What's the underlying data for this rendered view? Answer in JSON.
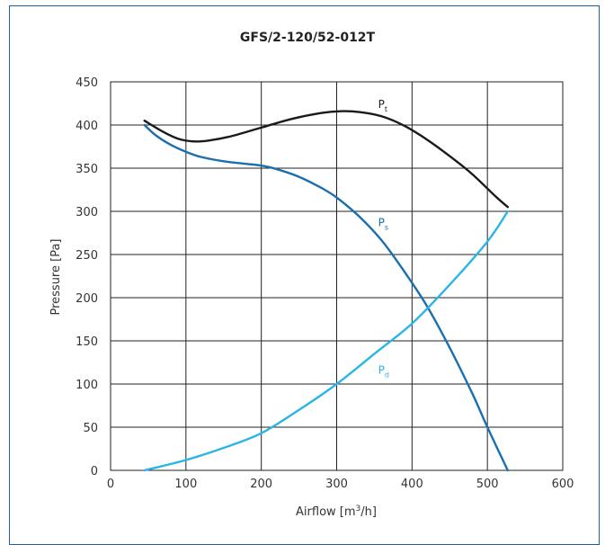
{
  "chart_data": {
    "type": "line",
    "title": "GFS/2-120/52-012T",
    "xlabel_main": "Airflow [m",
    "xlabel_sup": "3",
    "xlabel_tail": "/h]",
    "ylabel": "Pressure [Pa]",
    "xlim": [
      0,
      600
    ],
    "ylim": [
      0,
      450
    ],
    "xticks": [
      0,
      100,
      200,
      300,
      400,
      500,
      600
    ],
    "yticks": [
      0,
      50,
      100,
      150,
      200,
      250,
      300,
      350,
      400,
      450
    ],
    "grid": true,
    "series": [
      {
        "name": "P",
        "sub": "t",
        "color": "#1a1a1a",
        "x": [
          45,
          70,
          90,
          110,
          130,
          160,
          200,
          240,
          280,
          305,
          330,
          360,
          390,
          420,
          450,
          480,
          510,
          527
        ],
        "y": [
          405,
          392,
          384,
          381,
          382,
          387,
          397,
          407,
          414,
          416,
          415,
          410,
          399,
          383,
          364,
          343,
          318,
          305
        ],
        "label_x": 355,
        "label_y": 420
      },
      {
        "name": "P",
        "sub": "s",
        "color": "#1b6fad",
        "x": [
          45,
          60,
          80,
          100,
          120,
          150,
          180,
          200,
          220,
          250,
          280,
          300,
          330,
          360,
          390,
          420,
          450,
          480,
          500,
          527
        ],
        "y": [
          400,
          388,
          377,
          369,
          363,
          358,
          355,
          353,
          349,
          340,
          327,
          316,
          294,
          266,
          230,
          190,
          142,
          89,
          50,
          0
        ],
        "label_x": 355,
        "label_y": 283
      },
      {
        "name": "P",
        "sub": "d",
        "color": "#2ab5e6",
        "x": [
          45,
          100,
          150,
          200,
          250,
          300,
          350,
          400,
          450,
          500,
          527
        ],
        "y": [
          0,
          12,
          26,
          43,
          70,
          100,
          135,
          170,
          215,
          265,
          300
        ],
        "label_x": 355,
        "label_y": 112
      }
    ]
  }
}
